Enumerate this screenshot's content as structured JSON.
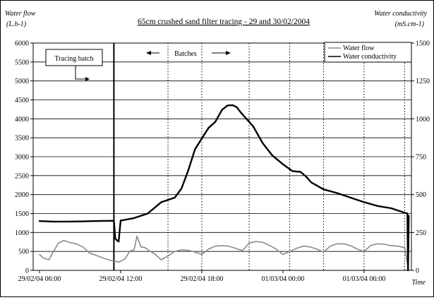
{
  "chart_data": {
    "type": "line",
    "title": "65cm crushed sand filter tracing - 29 and 30/02/2004",
    "y_left_label": [
      "Water flow",
      "(L.h-1)"
    ],
    "y_right_label": [
      "Water conductivity",
      "(mS.cm-1)"
    ],
    "x_label": "Time",
    "x_ticks": [
      "29/02/04 06:00",
      "29/02/04 12:00",
      "29/02/04 18:00",
      "01/03/04 00:00",
      "01/03/04 06:00"
    ],
    "y_left_ticks": [
      0,
      500,
      1000,
      1500,
      2000,
      2500,
      3000,
      3500,
      4000,
      4500,
      5000,
      5500,
      6000
    ],
    "y_right_ticks": [
      0,
      250,
      500,
      750,
      1000,
      1250,
      1500
    ],
    "ylim_left": [
      0,
      6000
    ],
    "ylim_right": [
      0,
      1500
    ],
    "xlim_hours_from_first_tick": [
      0,
      27.5
    ],
    "grid": "horizontal solid, vertical dotted at batch times",
    "legend": {
      "position": "top-right",
      "entries": [
        "Water flow",
        "Water conductivity"
      ]
    },
    "annotations": {
      "tracing_batch": "Tracing batch",
      "batches": "Batches"
    },
    "batch_lines_hours": [
      5.5,
      9.5,
      12.0,
      15.5,
      18.5,
      21.0,
      24.0,
      27.0
    ],
    "series": [
      {
        "name": "Water flow",
        "axis": "left",
        "color": "#8a8a8a",
        "x_hours": [
          0.0,
          0.3,
          0.7,
          1.0,
          1.4,
          1.8,
          2.2,
          2.7,
          3.2,
          3.7,
          4.3,
          4.9,
          5.4,
          5.9,
          6.3,
          6.7,
          7.0,
          7.2,
          7.5,
          7.8,
          8.1,
          8.5,
          9.0,
          9.5,
          10.0,
          10.5,
          11.0,
          11.5,
          12.0,
          12.5,
          13.0,
          13.5,
          14.0,
          14.5,
          15.0,
          15.5,
          16.0,
          16.5,
          17.0,
          17.5,
          18.0,
          18.5,
          19.0,
          19.5,
          20.0,
          20.5,
          21.0,
          21.5,
          22.0,
          22.5,
          23.0,
          23.5,
          24.0,
          24.5,
          25.0,
          25.5,
          26.0,
          26.5,
          27.0,
          27.3
        ],
        "values": [
          420,
          320,
          280,
          480,
          720,
          790,
          740,
          700,
          620,
          460,
          380,
          300,
          250,
          220,
          300,
          510,
          550,
          900,
          620,
          600,
          520,
          440,
          280,
          380,
          500,
          540,
          530,
          480,
          420,
          560,
          640,
          650,
          640,
          580,
          520,
          720,
          760,
          740,
          660,
          560,
          420,
          500,
          580,
          640,
          620,
          560,
          480,
          640,
          700,
          700,
          650,
          560,
          500,
          660,
          700,
          690,
          650,
          640,
          600,
          0
        ]
      },
      {
        "name": "Water conductivity",
        "axis": "right",
        "color": "#000000",
        "x_hours": [
          0.0,
          1.0,
          2.0,
          3.0,
          4.0,
          5.2,
          5.5,
          5.6,
          5.7,
          5.85,
          6.0,
          6.1,
          7.0,
          8.0,
          9.0,
          10.0,
          10.5,
          11.0,
          11.5,
          12.5,
          13.0,
          13.5,
          13.9,
          14.3,
          14.6,
          14.9,
          15.3,
          15.8,
          16.5,
          17.2,
          18.0,
          18.7,
          19.3,
          19.7,
          20.1,
          20.4,
          21.0,
          22.0,
          23.0,
          24.0,
          25.0,
          26.0,
          27.0,
          27.2,
          27.25,
          27.3
        ],
        "values": [
          325,
          322,
          322,
          323,
          325,
          327,
          327,
          210,
          200,
          190,
          330,
          330,
          345,
          375,
          450,
          480,
          540,
          660,
          800,
          940,
          980,
          1060,
          1088,
          1090,
          1075,
          1040,
          1000,
          950,
          840,
          760,
          700,
          655,
          650,
          620,
          580,
          565,
          535,
          510,
          480,
          450,
          425,
          410,
          380,
          375,
          0,
          360
        ]
      }
    ]
  }
}
